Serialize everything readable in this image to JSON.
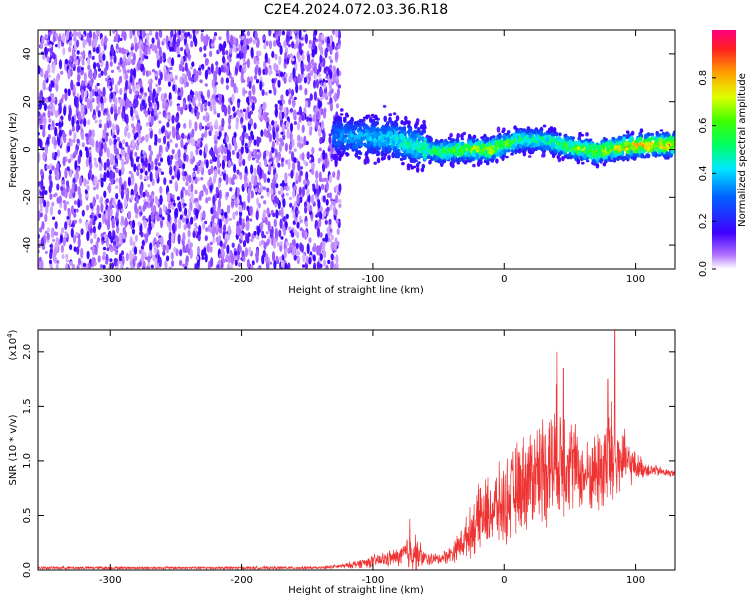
{
  "chart_data": [
    {
      "type": "heatmap",
      "title": "C2E4.2024.072.03.36.R18",
      "xlabel": "Height of straight line (km)",
      "ylabel": "Frequency (Hz)",
      "xlim": [
        -355,
        130
      ],
      "ylim": [
        -50,
        50
      ],
      "xticks": [
        -300,
        -200,
        -100,
        0,
        100
      ],
      "yticks": [
        -40,
        -20,
        0,
        20,
        40
      ],
      "xtick_labels": [
        "-300",
        "-200",
        "-100",
        "0",
        "100"
      ],
      "ytick_labels": [
        "-40",
        "-20",
        "0",
        "20",
        "40"
      ],
      "colorbar": {
        "label": "Normalized spectral amplitude",
        "range": [
          0.0,
          1.0
        ],
        "ticks": [
          0.0,
          0.2,
          0.4,
          0.6,
          0.8
        ],
        "tick_labels": [
          "0.0",
          "0.2",
          "0.4",
          "0.6",
          "0.8"
        ]
      },
      "ridge": {
        "x": [
          -130,
          -110,
          -90,
          -70,
          -50,
          -30,
          -10,
          10,
          30,
          50,
          70,
          90,
          110,
          130
        ],
        "freq": [
          6,
          5,
          5,
          2,
          -1,
          0,
          0,
          4,
          4,
          1,
          -1,
          1,
          2,
          2
        ],
        "amplitude": [
          0.35,
          0.42,
          0.45,
          0.55,
          0.62,
          0.7,
          0.82,
          0.6,
          0.55,
          0.7,
          0.78,
          0.85,
          0.92,
          0.9
        ]
      },
      "noise_region": [
        -355,
        -125
      ],
      "noise_amplitude": 0.15
    },
    {
      "type": "line",
      "xlabel": "Height of straight line (km)",
      "ylabel": "SNR (10 * v/v)",
      "y_multiplier_label": "(x10",
      "y_multiplier_exp": "4",
      "y_multiplier_close": ")",
      "xlim": [
        -355,
        130
      ],
      "ylim": [
        0,
        2.2
      ],
      "xticks": [
        -300,
        -200,
        -100,
        0,
        100
      ],
      "yticks": [
        0.0,
        0.5,
        1.0,
        1.5,
        2.0
      ],
      "xtick_labels": [
        "-300",
        "-200",
        "-100",
        "0",
        "100"
      ],
      "ytick_labels": [
        "0.0",
        "0.5",
        "1.0",
        "1.5",
        "2.0"
      ],
      "series": [
        {
          "name": "SNR",
          "color": "#ef3333",
          "envelope_x": [
            -355,
            -140,
            -120,
            -100,
            -80,
            -70,
            -60,
            -50,
            -40,
            -30,
            -20,
            -10,
            0,
            10,
            20,
            30,
            40,
            50,
            60,
            70,
            80,
            90,
            100,
            110,
            120,
            130
          ],
          "envelope_mid": [
            0.02,
            0.02,
            0.04,
            0.08,
            0.12,
            0.18,
            0.1,
            0.1,
            0.15,
            0.28,
            0.45,
            0.55,
            0.6,
            0.75,
            0.85,
            0.95,
            1.0,
            1.02,
            0.85,
            0.9,
            1.0,
            1.0,
            0.95,
            0.92,
            0.9,
            0.88
          ],
          "envelope_amp": [
            0.015,
            0.015,
            0.03,
            0.07,
            0.1,
            0.25,
            0.08,
            0.06,
            0.1,
            0.2,
            0.35,
            0.4,
            0.45,
            0.5,
            0.55,
            0.6,
            0.75,
            0.55,
            0.35,
            0.45,
            0.7,
            0.35,
            0.15,
            0.08,
            0.05,
            0.04
          ],
          "peaks": [
            [
              -72,
              0.47
            ],
            [
              -18,
              0.75
            ],
            [
              40,
              2.0
            ],
            [
              45,
              1.85
            ],
            [
              84,
              2.2
            ],
            [
              79,
              1.75
            ]
          ]
        }
      ]
    }
  ]
}
